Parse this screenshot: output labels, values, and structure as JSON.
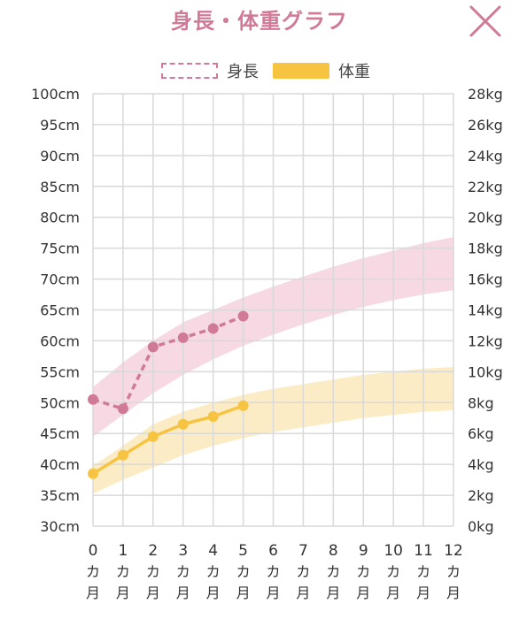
{
  "header": {
    "title": "身長・体重グラフ",
    "close_icon": "close-icon"
  },
  "legend": {
    "height_label": "身長",
    "weight_label": "体重"
  },
  "colors": {
    "height": "#d07a98",
    "height_band": "#f3ccd9",
    "weight": "#f7c442",
    "weight_band": "#fbe6b3",
    "grid": "#d9d9d9",
    "text": "#333333"
  },
  "chart_data": {
    "type": "line",
    "title": "身長・体重グラフ",
    "x": [
      0,
      1,
      2,
      3,
      4,
      5,
      6,
      7,
      8,
      9,
      10,
      11,
      12
    ],
    "xunit": [
      "カ",
      "月"
    ],
    "xlim": [
      0,
      12
    ],
    "left_axis": {
      "ticks": [
        "30cm",
        "35cm",
        "40cm",
        "45cm",
        "50cm",
        "55cm",
        "60cm",
        "65cm",
        "70cm",
        "75cm",
        "80cm",
        "85cm",
        "90cm",
        "95cm",
        "100cm"
      ],
      "ylim": [
        30,
        100
      ]
    },
    "right_axis": {
      "ticks": [
        "0kg",
        "2kg",
        "4kg",
        "6kg",
        "8kg",
        "10kg",
        "12kg",
        "14kg",
        "16kg",
        "18kg",
        "20kg",
        "22kg",
        "24kg",
        "26kg",
        "28kg"
      ],
      "ylim": [
        0,
        28
      ]
    },
    "grid": true,
    "legend_position": "top-center",
    "series": [
      {
        "name": "身長",
        "axis": "left",
        "style": "dashed",
        "x": [
          0,
          1,
          2,
          3,
          4,
          5
        ],
        "values": [
          50.5,
          49,
          59,
          60.5,
          62,
          64
        ]
      },
      {
        "name": "体重",
        "axis": "right",
        "style": "solid",
        "x": [
          0,
          1,
          2,
          3,
          4,
          5
        ],
        "values": [
          3.4,
          4.6,
          5.8,
          6.6,
          7.1,
          7.8
        ]
      }
    ],
    "bands": [
      {
        "series": "身長",
        "axis": "left",
        "x": [
          0,
          1,
          2,
          3,
          4,
          5,
          6,
          7,
          8,
          9,
          10,
          11,
          12
        ],
        "upper": [
          52.5,
          56.5,
          60,
          63,
          65,
          67,
          68.8,
          70.4,
          72,
          73.4,
          74.6,
          75.8,
          76.8
        ],
        "lower": [
          44.5,
          48,
          51.5,
          54.5,
          57,
          59.2,
          61,
          62.7,
          64.2,
          65.5,
          66.6,
          67.5,
          68.2
        ]
      },
      {
        "series": "体重",
        "axis": "right",
        "x": [
          0,
          1,
          2,
          3,
          4,
          5,
          6,
          7,
          8,
          9,
          10,
          11,
          12
        ],
        "upper": [
          3.9,
          5.2,
          6.6,
          7.4,
          8.0,
          8.5,
          8.9,
          9.2,
          9.5,
          9.8,
          10.0,
          10.2,
          10.3
        ],
        "lower": [
          2.1,
          3.0,
          3.8,
          4.6,
          5.2,
          5.7,
          6.1,
          6.4,
          6.7,
          7.0,
          7.2,
          7.4,
          7.5
        ]
      }
    ]
  }
}
